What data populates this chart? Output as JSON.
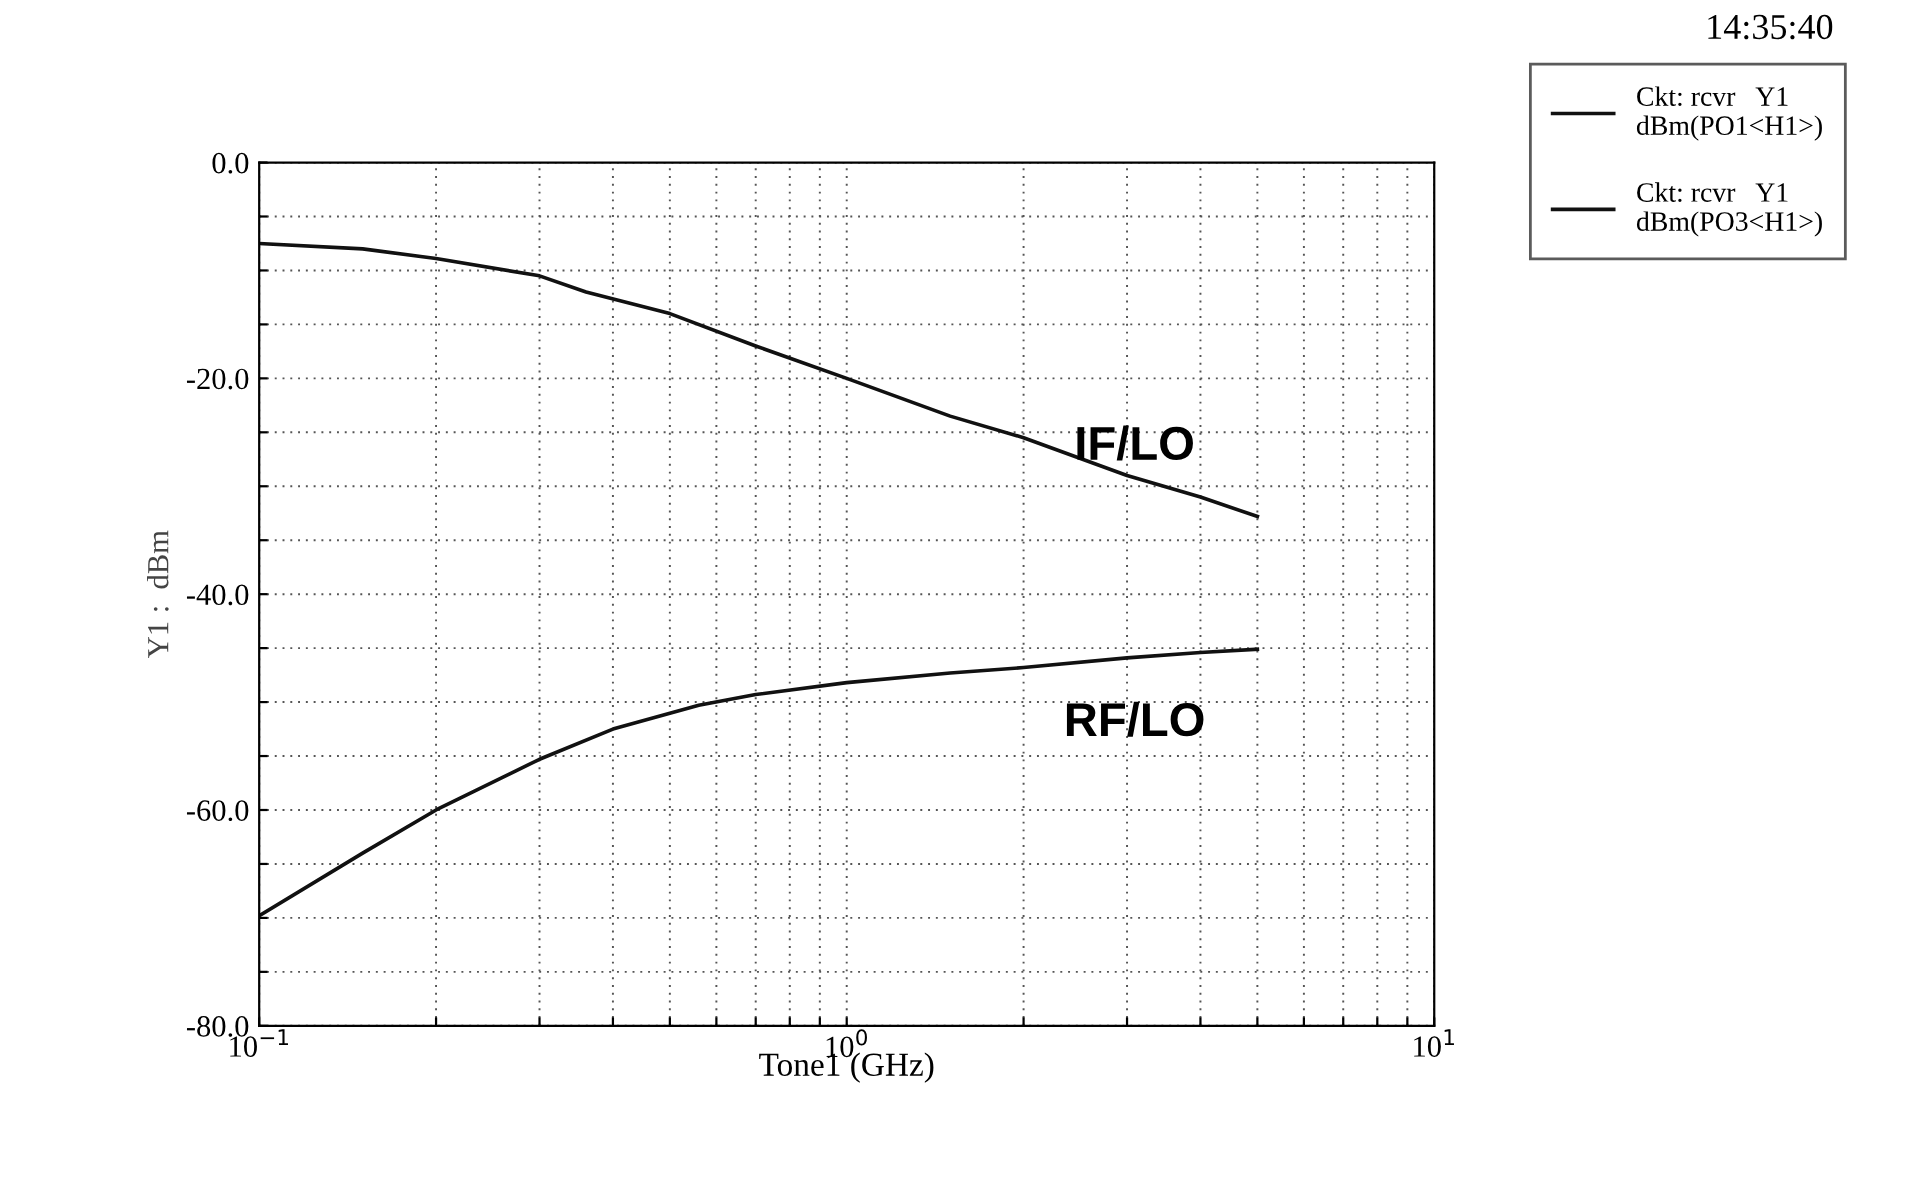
{
  "chart_data": {
    "type": "line",
    "xlabel": "Tone1 (GHz)",
    "ylabel": "Y1 :  dBm",
    "log": "x",
    "grid": true,
    "legend": "right",
    "line_style": "solid",
    "marker": "none",
    "xlim": [
      0.1,
      10
    ],
    "xticks": [
      {
        "value": 0.1,
        "label": "10$^{−1}$"
      },
      {
        "value": 0.2,
        "label": null
      },
      {
        "value": 0.3,
        "label": null
      },
      {
        "value": 0.4,
        "label": null
      },
      {
        "value": 0.5,
        "label": null
      },
      {
        "value": 0.6,
        "label": null
      },
      {
        "value": 0.7,
        "label": null
      },
      {
        "value": 0.8,
        "label": null
      },
      {
        "value": 0.9,
        "label": null
      },
      {
        "value": 1,
        "label": "10$^{0}$"
      },
      {
        "value": 2,
        "label": null
      },
      {
        "value": 3,
        "label": null
      },
      {
        "value": 4,
        "label": null
      },
      {
        "value": 5,
        "label": null
      },
      {
        "value": 6,
        "label": null
      },
      {
        "value": 7,
        "label": null
      },
      {
        "value": 8,
        "label": null
      },
      {
        "value": 9,
        "label": null
      },
      {
        "value": 10,
        "label": "10$^{1}$"
      }
    ],
    "ylim": [
      -80,
      0
    ],
    "yticks": [
      {
        "value": -80,
        "label": "-80.0"
      },
      {
        "value": -75,
        "label": null
      },
      {
        "value": -70,
        "label": null
      },
      {
        "value": -65,
        "label": null
      },
      {
        "value": -60,
        "label": "-60.0"
      },
      {
        "value": -55,
        "label": null
      },
      {
        "value": -50,
        "label": null
      },
      {
        "value": -45,
        "label": null
      },
      {
        "value": -40,
        "label": "-40.0"
      },
      {
        "value": -35,
        "label": null
      },
      {
        "value": -30,
        "label": null
      },
      {
        "value": -25,
        "label": null
      },
      {
        "value": -20,
        "label": "-20.0"
      },
      {
        "value": -15,
        "label": null
      },
      {
        "value": -10,
        "label": null
      },
      {
        "value": -5,
        "label": null
      },
      {
        "value": 0,
        "label": "0.0"
      }
    ],
    "series": [
      {
        "name": "Ckt: rcvr   Y1\ndBm(PO1<H1>)",
        "color": "#111111",
        "x": [
          0.1,
          0.15,
          0.2,
          0.3,
          0.36,
          0.5,
          0.7,
          1,
          1.5,
          2,
          3,
          4,
          5
        ],
        "values": [
          -7.5,
          -8,
          -8.9,
          -10.5,
          -12,
          -14,
          -17,
          -20,
          -23.5,
          -25.5,
          -29,
          -31,
          -32.8
        ]
      },
      {
        "name": "Ckt: rcvr   Y1\ndBm(PO3<H1>)",
        "color": "#111111",
        "x": [
          0.1,
          0.15,
          0.2,
          0.3,
          0.4,
          0.56,
          0.7,
          1,
          1.5,
          2,
          3,
          4,
          5
        ],
        "values": [
          -69.8,
          -64,
          -60,
          -55.3,
          -52.5,
          -50.3,
          -49.3,
          -48.2,
          -47.3,
          -46.8,
          -45.9,
          -45.4,
          -45.1
        ]
      }
    ],
    "annotations": [
      "IF/LO",
      "RF/LO",
      "14:35:40"
    ]
  }
}
